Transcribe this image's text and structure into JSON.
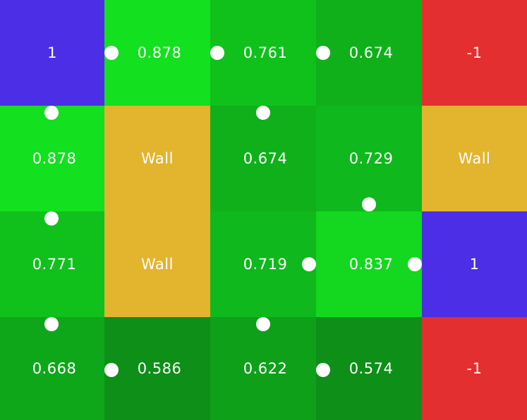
{
  "grid": {
    "rows": [
      [
        "1",
        "0.878",
        "0.761",
        "0.674",
        "-1"
      ],
      [
        "0.878",
        "Wall",
        "0.674",
        "0.729",
        "Wall"
      ],
      [
        "0.771",
        "Wall",
        "0.719",
        "0.837",
        "1"
      ],
      [
        "0.668",
        "0.586",
        "0.622",
        "0.574",
        "-1"
      ]
    ],
    "policy": [
      [
        null,
        "left",
        "left",
        "left",
        null
      ],
      [
        "up",
        null,
        "up",
        "down",
        null
      ],
      [
        "up",
        null,
        "right",
        "right",
        null
      ],
      [
        "up",
        "left",
        "up",
        "left",
        null
      ]
    ]
  },
  "colors": {
    "reward_positive": "#4b2ee6",
    "reward_negative": "#e32f2f",
    "wall": "#e3b42e",
    "value_high": "#13e01f",
    "value_low": "#0e8f18",
    "policy_marker": "#ffffff"
  }
}
